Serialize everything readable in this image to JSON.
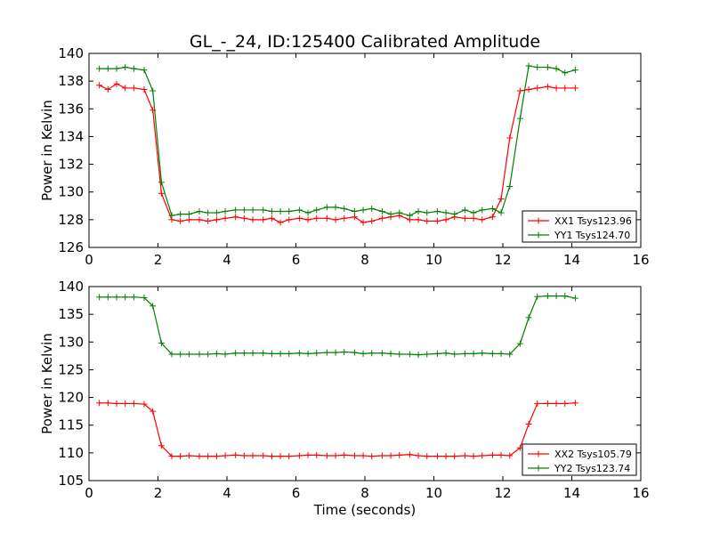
{
  "chart_data": [
    {
      "type": "line",
      "title": "GL_-_24, ID:125400 Calibrated Amplitude",
      "xlabel": "",
      "ylabel": "Power in Kelvin",
      "xlim": [
        0,
        16
      ],
      "ylim": [
        126,
        140
      ],
      "xticks": [
        "0",
        "2",
        "4",
        "6",
        "8",
        "10",
        "12",
        "14",
        "16"
      ],
      "yticks": [
        "126",
        "128",
        "130",
        "132",
        "134",
        "136",
        "138",
        "140"
      ],
      "xtick_values": [
        0,
        2,
        4,
        6,
        8,
        10,
        12,
        14,
        16
      ],
      "ytick_values": [
        126,
        128,
        130,
        132,
        134,
        136,
        138,
        140
      ],
      "grid": false,
      "legend_position": "bottom-right",
      "x": [
        0.3,
        0.55,
        0.8,
        1.05,
        1.3,
        1.6,
        1.85,
        2.1,
        2.4,
        2.65,
        2.9,
        3.2,
        3.45,
        3.7,
        3.95,
        4.25,
        4.5,
        4.75,
        5.05,
        5.3,
        5.55,
        5.8,
        6.1,
        6.35,
        6.6,
        6.9,
        7.15,
        7.4,
        7.7,
        7.95,
        8.2,
        8.5,
        8.75,
        9.0,
        9.3,
        9.55,
        9.8,
        10.1,
        10.35,
        10.6,
        10.9,
        11.15,
        11.4,
        11.7,
        11.95,
        12.2,
        12.5,
        12.75,
        13.0,
        13.3,
        13.55,
        13.8,
        14.1
      ],
      "series": [
        {
          "name": "XX1 Tsys123.96",
          "color": "#ff0000",
          "values": [
            137.7,
            137.4,
            137.8,
            137.5,
            137.5,
            137.4,
            135.9,
            129.9,
            128.0,
            127.9,
            128.0,
            128.0,
            127.9,
            128.0,
            128.1,
            128.2,
            128.1,
            128.0,
            128.0,
            128.1,
            127.8,
            128.0,
            128.1,
            128.0,
            128.1,
            128.1,
            128.0,
            128.1,
            128.2,
            127.8,
            127.9,
            128.1,
            128.2,
            128.3,
            128.0,
            128.0,
            127.9,
            127.9,
            128.0,
            128.2,
            128.1,
            128.1,
            128.0,
            128.2,
            129.5,
            133.9,
            137.3,
            137.4,
            137.5,
            137.6,
            137.5,
            137.5,
            137.5
          ]
        },
        {
          "name": "YY1 Tsys124.70",
          "color": "#008000",
          "values": [
            138.9,
            138.9,
            138.9,
            139.0,
            138.9,
            138.8,
            137.3,
            130.7,
            128.3,
            128.4,
            128.4,
            128.6,
            128.5,
            128.5,
            128.6,
            128.7,
            128.7,
            128.7,
            128.7,
            128.6,
            128.6,
            128.6,
            128.7,
            128.5,
            128.7,
            128.9,
            128.9,
            128.8,
            128.6,
            128.7,
            128.8,
            128.6,
            128.4,
            128.5,
            128.3,
            128.6,
            128.5,
            128.6,
            128.5,
            128.4,
            128.7,
            128.5,
            128.7,
            128.8,
            128.5,
            130.4,
            135.3,
            139.1,
            139.0,
            139.0,
            138.9,
            138.6,
            138.8
          ]
        }
      ]
    },
    {
      "type": "line",
      "title": "",
      "xlabel": "Time (seconds)",
      "ylabel": "Power in Kelvin",
      "xlim": [
        0,
        16
      ],
      "ylim": [
        105,
        140
      ],
      "xticks": [
        "0",
        "2",
        "4",
        "6",
        "8",
        "10",
        "12",
        "14",
        "16"
      ],
      "yticks": [
        "105",
        "110",
        "115",
        "120",
        "125",
        "130",
        "135",
        "140"
      ],
      "xtick_values": [
        0,
        2,
        4,
        6,
        8,
        10,
        12,
        14,
        16
      ],
      "ytick_values": [
        105,
        110,
        115,
        120,
        125,
        130,
        135,
        140
      ],
      "grid": false,
      "legend_position": "bottom-right",
      "x": [
        0.3,
        0.55,
        0.8,
        1.05,
        1.3,
        1.6,
        1.85,
        2.1,
        2.4,
        2.65,
        2.9,
        3.2,
        3.45,
        3.7,
        3.95,
        4.25,
        4.5,
        4.75,
        5.05,
        5.3,
        5.55,
        5.8,
        6.1,
        6.35,
        6.6,
        6.9,
        7.15,
        7.4,
        7.7,
        7.95,
        8.2,
        8.5,
        8.75,
        9.0,
        9.3,
        9.55,
        9.8,
        10.1,
        10.35,
        10.6,
        10.9,
        11.15,
        11.4,
        11.7,
        11.95,
        12.2,
        12.5,
        12.75,
        13.0,
        13.3,
        13.55,
        13.8,
        14.1
      ],
      "series": [
        {
          "name": "XX2 Tsys105.79",
          "color": "#ff0000",
          "values": [
            119.0,
            119.0,
            118.9,
            118.9,
            118.9,
            118.8,
            117.5,
            111.3,
            109.4,
            109.4,
            109.5,
            109.4,
            109.4,
            109.4,
            109.5,
            109.6,
            109.5,
            109.5,
            109.5,
            109.4,
            109.4,
            109.4,
            109.5,
            109.6,
            109.6,
            109.5,
            109.5,
            109.6,
            109.5,
            109.5,
            109.4,
            109.5,
            109.5,
            109.6,
            109.7,
            109.5,
            109.4,
            109.4,
            109.4,
            109.4,
            109.5,
            109.4,
            109.5,
            109.6,
            109.6,
            109.5,
            110.9,
            115.2,
            118.9,
            118.9,
            118.9,
            118.9,
            119.0
          ]
        },
        {
          "name": "YY2 Tsys123.74",
          "color": "#008000",
          "values": [
            138.1,
            138.1,
            138.1,
            138.1,
            138.1,
            138.0,
            136.5,
            129.8,
            127.8,
            127.8,
            127.8,
            127.8,
            127.8,
            127.9,
            127.8,
            128.0,
            128.0,
            128.0,
            128.0,
            127.9,
            127.9,
            127.9,
            128.0,
            127.9,
            128.0,
            128.1,
            128.1,
            128.2,
            128.1,
            127.9,
            128.0,
            128.0,
            127.9,
            127.8,
            127.8,
            127.7,
            127.8,
            127.9,
            128.0,
            127.8,
            127.9,
            127.9,
            128.0,
            127.9,
            127.9,
            127.8,
            129.7,
            134.4,
            138.2,
            138.3,
            138.3,
            138.3,
            137.9
          ]
        }
      ]
    }
  ]
}
